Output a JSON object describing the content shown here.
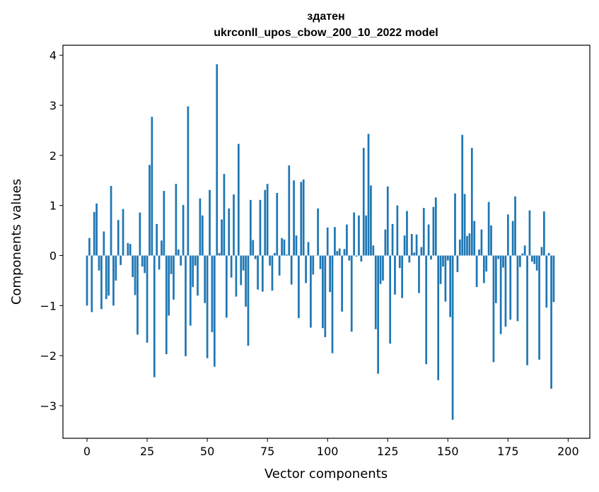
{
  "chart_data": {
    "type": "bar",
    "title_line1": "здатен",
    "title_line2": "ukrconll_upos_cbow_200_10_2022 model",
    "xlabel": "Vector components",
    "ylabel": "Components values",
    "xlim": [
      -10,
      209
    ],
    "ylim": [
      -3.65,
      4.2
    ],
    "xticks": [
      0,
      25,
      50,
      75,
      100,
      125,
      150,
      175,
      200
    ],
    "yticks": [
      -3,
      -2,
      -1,
      0,
      1,
      2,
      3,
      4
    ],
    "bar_color": "#1f77b4",
    "grid": false,
    "values": [
      -1.0,
      0.35,
      -1.13,
      0.87,
      1.04,
      -0.3,
      -1.07,
      0.48,
      -0.87,
      -0.8,
      1.39,
      -1.0,
      -0.5,
      0.71,
      -0.19,
      0.93,
      0.0,
      0.25,
      0.23,
      -0.43,
      -0.79,
      -1.58,
      0.86,
      -0.22,
      -0.35,
      -1.74,
      1.81,
      2.77,
      -2.43,
      0.63,
      -0.28,
      0.3,
      1.29,
      -1.97,
      -1.2,
      -0.37,
      -0.88,
      1.43,
      0.12,
      -0.2,
      1.01,
      -2.01,
      2.98,
      -1.4,
      -0.63,
      -0.2,
      -0.8,
      1.14,
      0.8,
      -0.95,
      -2.05,
      1.31,
      -1.53,
      -2.22,
      3.82,
      0.05,
      0.72,
      1.63,
      -1.24,
      0.94,
      -0.44,
      1.22,
      -0.82,
      2.23,
      -0.59,
      -0.3,
      -1.02,
      -1.8,
      1.11,
      0.31,
      -0.07,
      -0.68,
      1.11,
      -0.72,
      1.31,
      1.43,
      -0.2,
      -0.7,
      0.05,
      1.25,
      -0.4,
      0.35,
      0.32,
      0.02,
      1.8,
      -0.58,
      1.5,
      0.4,
      -1.25,
      1.47,
      1.52,
      -0.55,
      0.27,
      -1.44,
      -0.38,
      0.0,
      0.94,
      -0.27,
      -1.45,
      -1.63,
      0.56,
      -0.73,
      -1.95,
      0.57,
      0.09,
      0.14,
      -1.12,
      0.13,
      0.62,
      -0.1,
      -1.52,
      0.86,
      -0.02,
      0.8,
      -0.12,
      2.15,
      0.8,
      2.43,
      1.4,
      0.2,
      -1.47,
      -2.36,
      -0.57,
      -0.5,
      0.52,
      1.38,
      -1.76,
      0.63,
      -0.78,
      1.0,
      -0.25,
      -0.85,
      0.4,
      0.89,
      -0.14,
      0.43,
      0.06,
      0.42,
      -0.75,
      0.17,
      0.95,
      -2.17,
      0.62,
      -0.08,
      0.97,
      1.16,
      -2.49,
      -0.57,
      -0.22,
      -0.92,
      -0.1,
      -1.23,
      -3.28,
      1.24,
      -0.33,
      0.32,
      2.41,
      1.23,
      0.39,
      0.44,
      2.15,
      0.69,
      -0.63,
      0.12,
      0.52,
      -0.55,
      -0.32,
      1.07,
      0.6,
      -2.13,
      -0.95,
      -0.07,
      -1.57,
      -0.24,
      -1.42,
      0.82,
      -1.28,
      0.69,
      1.18,
      -1.31,
      -0.23,
      0.04,
      0.2,
      -2.19,
      0.9,
      -0.12,
      -0.17,
      -0.3,
      -2.08,
      0.17,
      0.88,
      -1.04,
      0.05,
      -2.66,
      -0.93
    ]
  }
}
